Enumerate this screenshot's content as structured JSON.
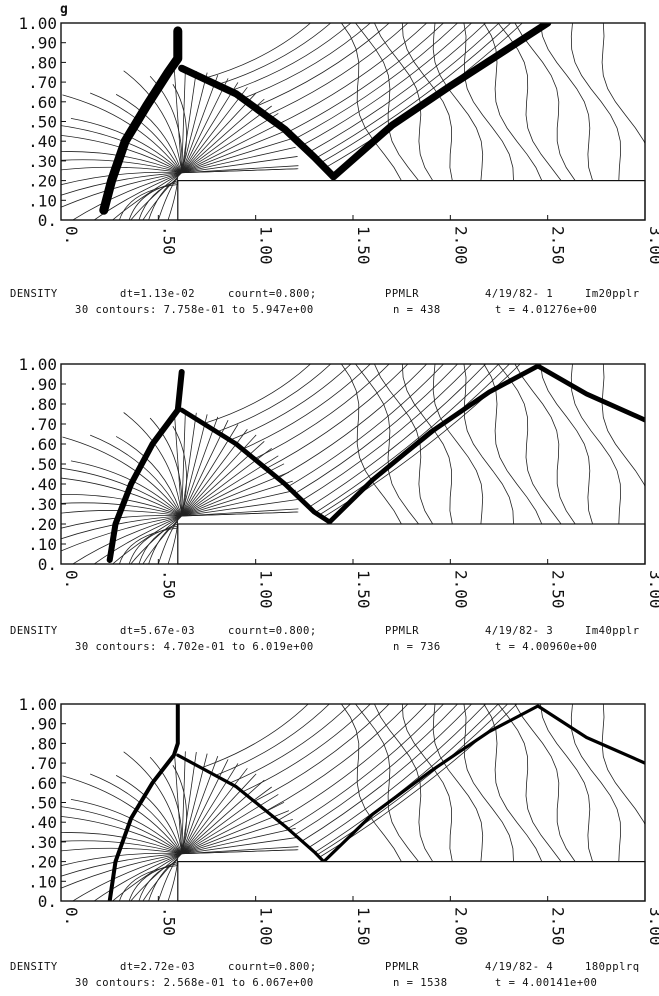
{
  "figure_label": "g",
  "chart_data": [
    {
      "type": "contour",
      "xlim": [
        0,
        3
      ],
      "ylim": [
        0,
        1
      ],
      "y_ticks": [
        "0.",
        ".10",
        ".20",
        ".30",
        ".40",
        ".50",
        ".60",
        ".70",
        ".80",
        ".90",
        "1.00"
      ],
      "x_ticks": [
        "0.",
        ".50",
        "1.00",
        "1.50",
        "2.00",
        "2.50",
        "3.00"
      ],
      "step": {
        "x_start": 0.6,
        "height": 0.2
      },
      "bow_shock": [
        [
          0.22,
          0.05
        ],
        [
          0.26,
          0.2
        ],
        [
          0.33,
          0.4
        ],
        [
          0.44,
          0.58
        ],
        [
          0.55,
          0.75
        ],
        [
          0.6,
          0.82
        ],
        [
          0.6,
          0.96
        ]
      ],
      "reflected_shock": [
        [
          0.62,
          0.77
        ],
        [
          0.9,
          0.64
        ],
        [
          1.15,
          0.46
        ],
        [
          1.3,
          0.32
        ],
        [
          1.4,
          0.22
        ]
      ],
      "transmitted_shock": [
        [
          1.4,
          0.22
        ],
        [
          1.7,
          0.48
        ],
        [
          2.0,
          0.68
        ],
        [
          2.5,
          1.0
        ]
      ],
      "shock_width": 9,
      "n_contours": 30,
      "caption": {
        "variable": "DENSITY",
        "dt": "dt=1.13e-02",
        "courant": "cournt=0.800;",
        "scheme": "PPMLR",
        "date": "4/19/82- 1",
        "run": "Im20pplr",
        "contours": "30 contours: 7.758e-01 to 5.947e+00",
        "n": "n =   438",
        "t": "t = 4.01276e+00"
      }
    },
    {
      "type": "contour",
      "xlim": [
        0,
        3
      ],
      "ylim": [
        0,
        1
      ],
      "y_ticks": [
        "0.",
        ".10",
        ".20",
        ".30",
        ".40",
        ".50",
        ".60",
        ".70",
        ".80",
        ".90",
        "1.00"
      ],
      "x_ticks": [
        "0.",
        ".50",
        "1.00",
        "1.50",
        "2.00",
        "2.50",
        "3.00"
      ],
      "step": {
        "x_start": 0.6,
        "height": 0.2
      },
      "bow_shock": [
        [
          0.25,
          0.02
        ],
        [
          0.28,
          0.2
        ],
        [
          0.36,
          0.4
        ],
        [
          0.47,
          0.6
        ],
        [
          0.6,
          0.77
        ],
        [
          0.62,
          0.96
        ]
      ],
      "reflected_shock": [
        [
          0.62,
          0.77
        ],
        [
          0.9,
          0.6
        ],
        [
          1.15,
          0.4
        ],
        [
          1.3,
          0.26
        ],
        [
          1.38,
          0.21
        ]
      ],
      "transmitted_shock": [
        [
          1.38,
          0.21
        ],
        [
          1.6,
          0.42
        ],
        [
          1.9,
          0.66
        ],
        [
          2.2,
          0.86
        ],
        [
          2.45,
          0.99
        ],
        [
          2.7,
          0.85
        ],
        [
          3.0,
          0.72
        ]
      ],
      "shock_width": 6,
      "n_contours": 30,
      "caption": {
        "variable": "DENSITY",
        "dt": "dt=5.67e-03",
        "courant": "cournt=0.800;",
        "scheme": "PPMLR",
        "date": "4/19/82- 3",
        "run": "Im40pplr",
        "contours": "30 contours: 4.702e-01 to 6.019e+00",
        "n": "n =  736",
        "t": "t = 4.00960e+00"
      }
    },
    {
      "type": "contour",
      "xlim": [
        0,
        3
      ],
      "ylim": [
        0,
        1
      ],
      "y_ticks": [
        "0.",
        ".10",
        ".20",
        ".30",
        ".40",
        ".50",
        ".60",
        ".70",
        ".80",
        ".90",
        "1.00"
      ],
      "x_ticks": [
        "0.",
        ".50",
        "1.00",
        "1.50",
        "2.00",
        "2.50",
        "3.00"
      ],
      "step": {
        "x_start": 0.6,
        "height": 0.2
      },
      "bow_shock": [
        [
          0.25,
          0.0
        ],
        [
          0.28,
          0.2
        ],
        [
          0.36,
          0.42
        ],
        [
          0.47,
          0.6
        ],
        [
          0.58,
          0.74
        ],
        [
          0.6,
          0.8
        ],
        [
          0.6,
          1.0
        ]
      ],
      "reflected_shock": [
        [
          0.6,
          0.74
        ],
        [
          0.9,
          0.58
        ],
        [
          1.15,
          0.38
        ],
        [
          1.3,
          0.25
        ],
        [
          1.35,
          0.2
        ]
      ],
      "transmitted_shock": [
        [
          1.35,
          0.2
        ],
        [
          1.6,
          0.44
        ],
        [
          1.9,
          0.66
        ],
        [
          2.2,
          0.86
        ],
        [
          2.45,
          0.99
        ],
        [
          2.7,
          0.83
        ],
        [
          3.0,
          0.7
        ]
      ],
      "shock_width": 4,
      "n_contours": 30,
      "caption": {
        "variable": "DENSITY",
        "dt": "dt=2.72e-03",
        "courant": "cournt=0.800;",
        "scheme": "PPMLR",
        "date": "4/19/82- 4",
        "run": "180pplrq",
        "contours": "30 contours: 2.568e-01 to 6.067e+00",
        "n": "n = 1538",
        "t": "t = 4.00141e+00"
      }
    }
  ]
}
